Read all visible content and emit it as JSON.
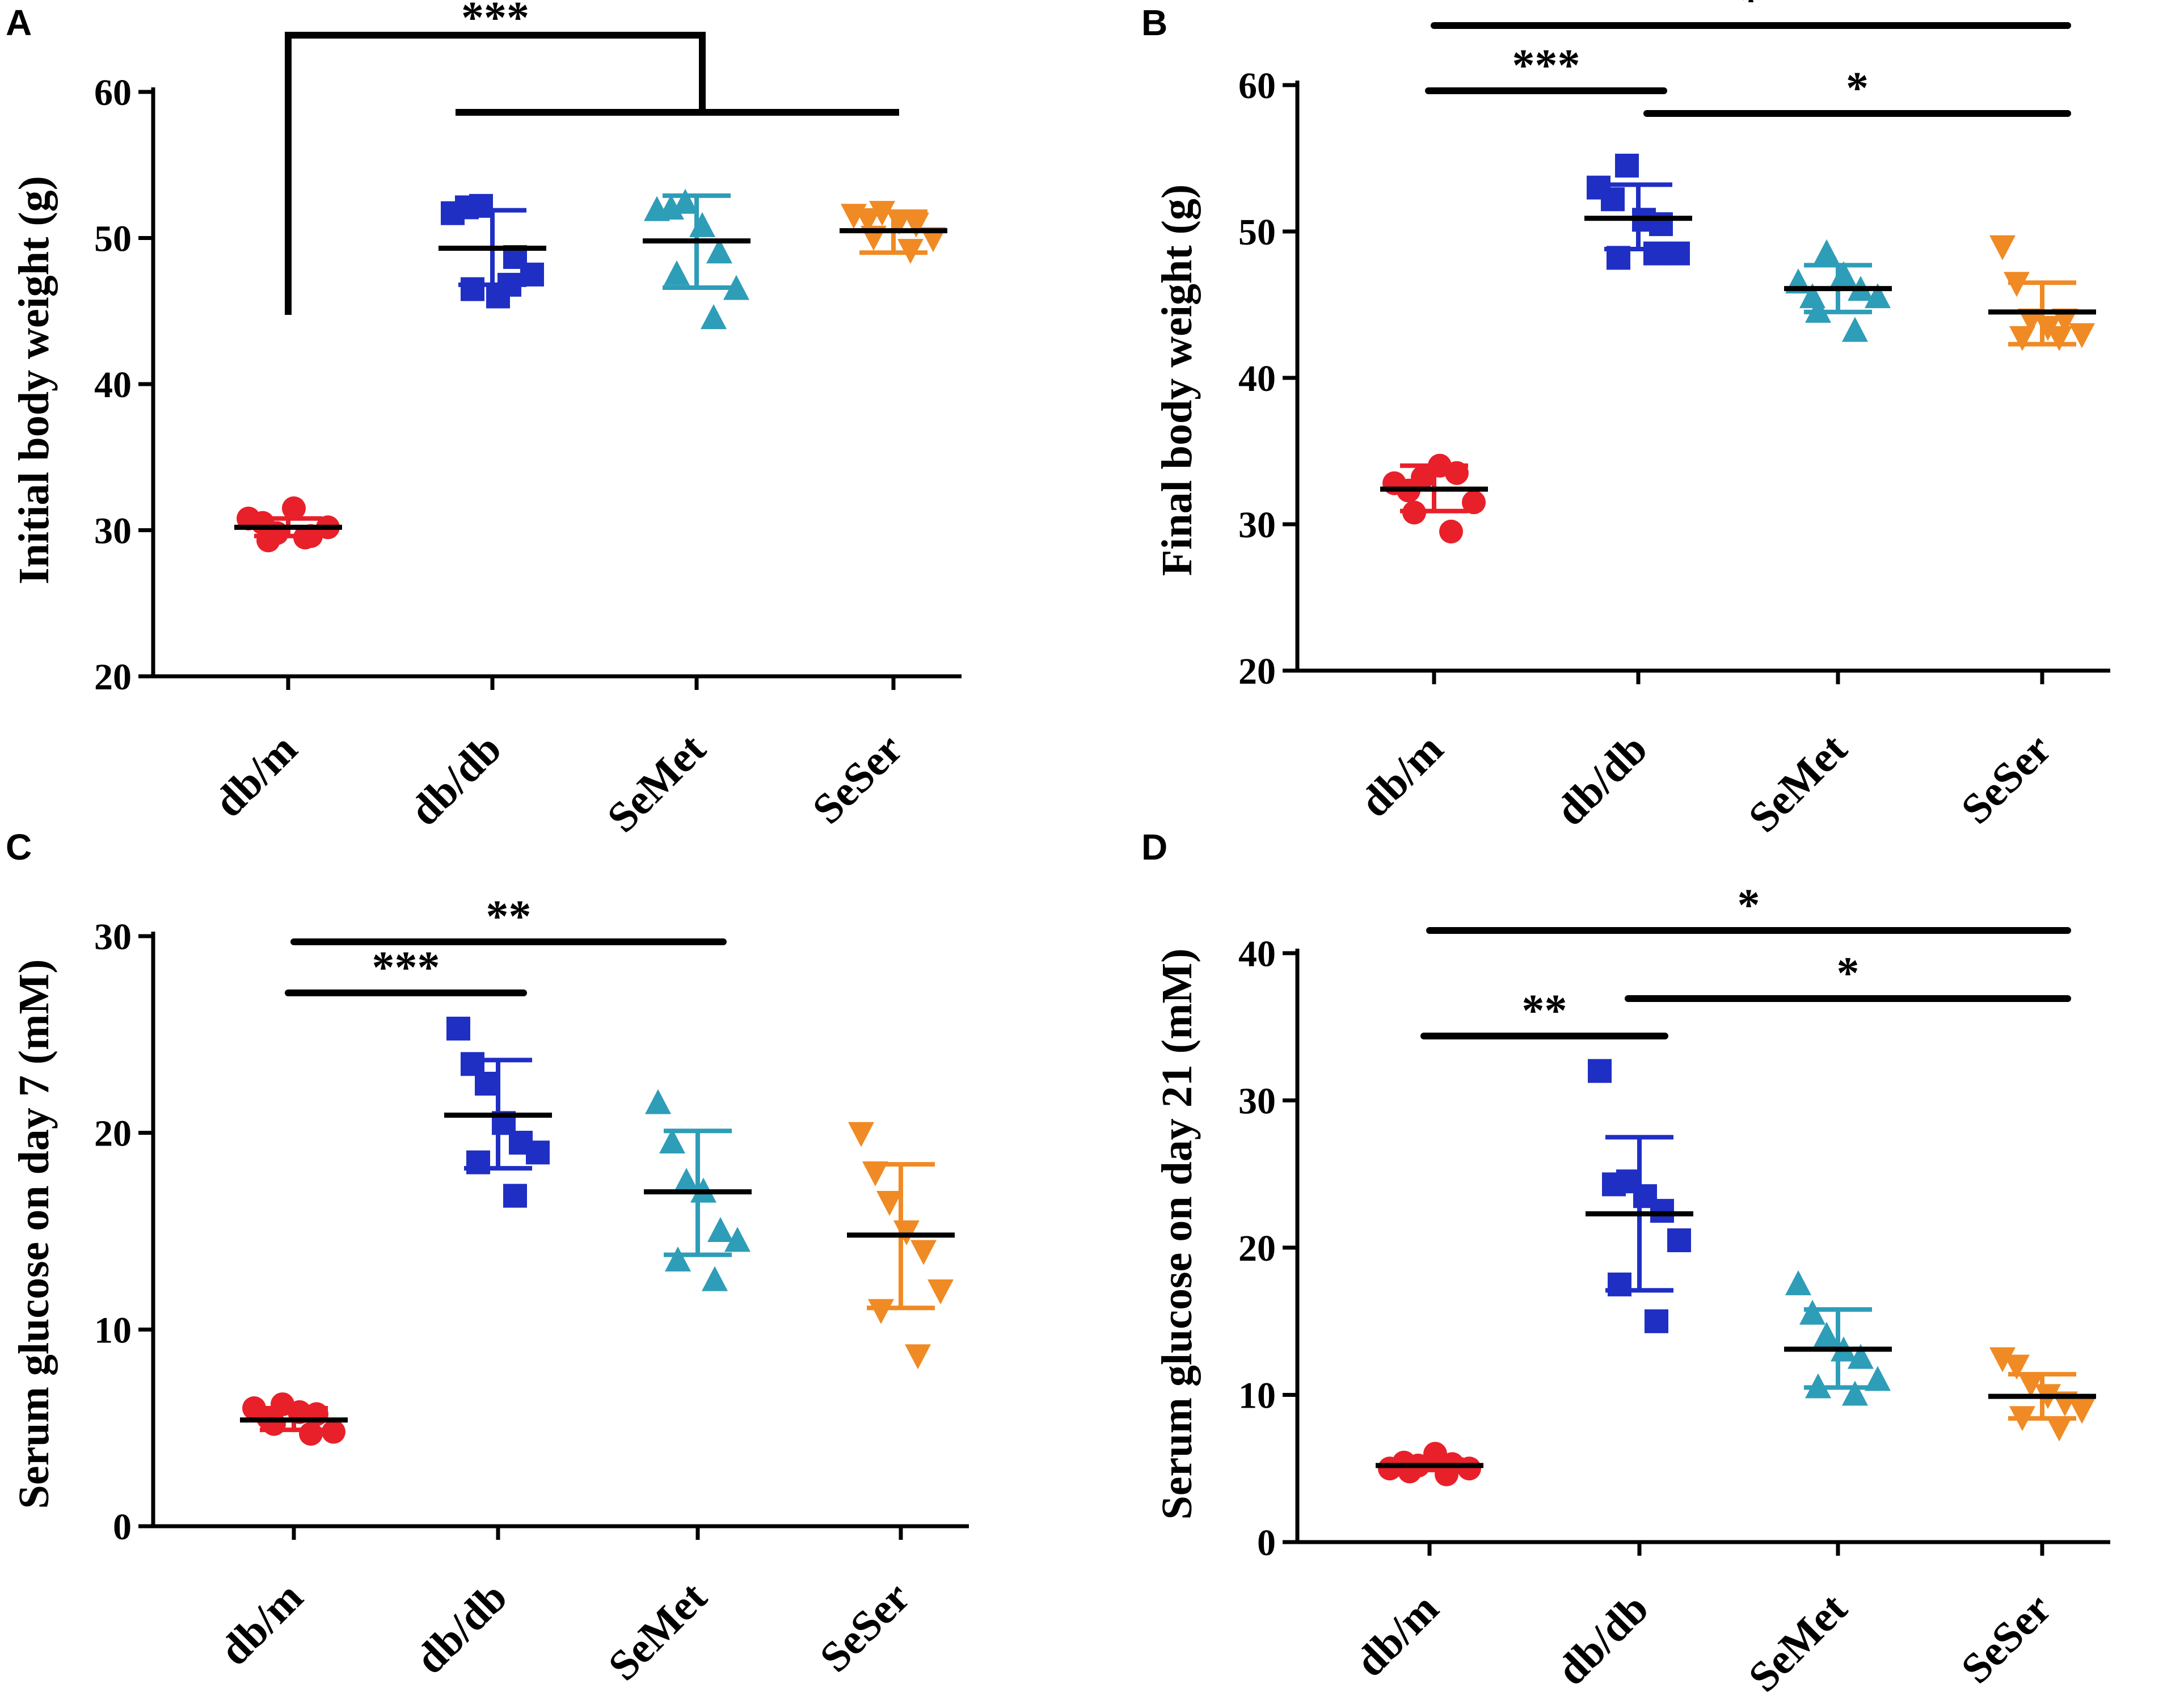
{
  "chart_data": [
    {
      "type": "scatter",
      "panel": "A",
      "ylabel": "Initial body weight (g)",
      "ylim": [
        20,
        60
      ],
      "yticks": [
        20,
        30,
        40,
        50,
        60
      ],
      "categories": [
        "db/m",
        "db/db",
        "SeMet",
        "SeSer"
      ],
      "series": [
        {
          "name": "db/m",
          "color": "#e8202a",
          "marker": "circle",
          "values": [
            30.8,
            30.5,
            29.8,
            31.5,
            29.6,
            30.2,
            29.3,
            29.5
          ],
          "mean": 30.2,
          "sd_low": 29.6,
          "sd_high": 30.8
        },
        {
          "name": "db/db",
          "color": "#1f2fc4",
          "marker": "square",
          "values": [
            51.7,
            52.1,
            52.2,
            46.0,
            48.7,
            47.5,
            46.5,
            46.8
          ],
          "mean": 49.3,
          "sd_low": 46.8,
          "sd_high": 51.9
        },
        {
          "name": "SeMet",
          "color": "#2e9db8",
          "marker": "triangle-up",
          "values": [
            51.9,
            52.0,
            52.4,
            50.8,
            49.0,
            46.5,
            47.5,
            44.5
          ],
          "mean": 49.8,
          "sd_low": 46.6,
          "sd_high": 52.9
        },
        {
          "name": "SeSer",
          "color": "#f08a24",
          "marker": "triangle-down",
          "values": [
            51.6,
            51.3,
            51.8,
            51.2,
            51.0,
            50.0,
            50.1,
            49.2
          ],
          "mean": 50.5,
          "sd_low": 49.0,
          "sd_high": 51.8
        }
      ],
      "comparisons": [
        {
          "type": "group-bracket",
          "from": "db/m",
          "to": [
            "db/db",
            "SeMet",
            "SeSer"
          ],
          "label": "***"
        }
      ]
    },
    {
      "type": "scatter",
      "panel": "B",
      "ylabel": "Final body weight (g)",
      "ylim": [
        20,
        60
      ],
      "yticks": [
        20,
        30,
        40,
        50,
        60
      ],
      "categories": [
        "db/m",
        "db/db",
        "SeMet",
        "SeSer"
      ],
      "series": [
        {
          "name": "db/m",
          "color": "#e8202a",
          "marker": "circle",
          "values": [
            32.8,
            32.3,
            33.2,
            34.0,
            33.5,
            31.5,
            30.8,
            29.5
          ],
          "mean": 32.4,
          "sd_low": 30.9,
          "sd_high": 34.0
        },
        {
          "name": "db/db",
          "color": "#1f2fc4",
          "marker": "square",
          "values": [
            53.0,
            52.2,
            54.5,
            50.8,
            50.5,
            48.5,
            48.2,
            48.5
          ],
          "mean": 50.9,
          "sd_low": 48.8,
          "sd_high": 53.2
        },
        {
          "name": "SeMet",
          "color": "#2e9db8",
          "marker": "triangle-up",
          "values": [
            46.5,
            45.5,
            48.5,
            47.0,
            46.0,
            45.5,
            44.5,
            43.2
          ],
          "mean": 46.1,
          "sd_low": 44.5,
          "sd_high": 47.7
        },
        {
          "name": "SeSer",
          "color": "#f08a24",
          "marker": "triangle-down",
          "values": [
            49.0,
            46.5,
            44.0,
            43.5,
            44.0,
            43.0,
            42.8,
            42.8
          ],
          "mean": 44.5,
          "sd_low": 42.3,
          "sd_high": 46.5
        }
      ],
      "comparisons": [
        {
          "from": "db/m",
          "to": "db/db",
          "label": "***"
        },
        {
          "from": "db/db",
          "to": "SeSer",
          "label": "*"
        },
        {
          "from": "db/m",
          "to": "SeSer",
          "label": "*"
        }
      ]
    },
    {
      "type": "scatter",
      "panel": "C",
      "ylabel": "Serum glucose on day 7 (mM)",
      "ylim": [
        0,
        30
      ],
      "yticks": [
        0,
        10,
        20,
        30
      ],
      "categories": [
        "db/m",
        "db/db",
        "SeMet",
        "SeSer"
      ],
      "series": [
        {
          "name": "db/m",
          "color": "#e8202a",
          "marker": "circle",
          "values": [
            6.0,
            5.5,
            6.2,
            5.8,
            5.7,
            4.8,
            5.2,
            4.7
          ],
          "mean": 5.4,
          "sd_low": 4.9,
          "sd_high": 6.0
        },
        {
          "name": "db/db",
          "color": "#1f2fc4",
          "marker": "square",
          "values": [
            25.3,
            23.5,
            22.5,
            20.5,
            19.5,
            19.0,
            18.5,
            16.8
          ],
          "mean": 20.9,
          "sd_low": 18.2,
          "sd_high": 23.7
        },
        {
          "name": "SeMet",
          "color": "#2e9db8",
          "marker": "triangle-up",
          "values": [
            21.5,
            19.5,
            17.5,
            17.0,
            15.0,
            14.5,
            13.5,
            12.5
          ],
          "mean": 17.0,
          "sd_low": 13.8,
          "sd_high": 20.1
        },
        {
          "name": "SeSer",
          "color": "#f08a24",
          "marker": "triangle-down",
          "values": [
            20.0,
            18.0,
            16.5,
            15.0,
            14.0,
            12.0,
            11.0,
            8.7
          ],
          "mean": 14.8,
          "sd_low": 11.1,
          "sd_high": 18.4
        }
      ],
      "comparisons": [
        {
          "from": "db/m",
          "to": "db/db",
          "label": "***"
        },
        {
          "from": "db/m",
          "to": "SeMet",
          "label": "**"
        }
      ]
    },
    {
      "type": "scatter",
      "panel": "D",
      "ylabel": "Serum glucose on day 21 (mM)",
      "ylim": [
        0,
        40
      ],
      "yticks": [
        0,
        10,
        20,
        30,
        40
      ],
      "categories": [
        "db/m",
        "db/db",
        "SeMet",
        "SeSer"
      ],
      "series": [
        {
          "name": "db/m",
          "color": "#e8202a",
          "marker": "circle",
          "values": [
            5.0,
            5.4,
            5.2,
            6.0,
            5.3,
            5.0,
            4.8,
            4.6
          ],
          "mean": 5.2,
          "sd_low": 4.9,
          "sd_high": 5.6
        },
        {
          "name": "db/db",
          "color": "#1f2fc4",
          "marker": "square",
          "values": [
            32.0,
            24.3,
            24.5,
            23.5,
            22.5,
            20.5,
            17.5,
            15.0
          ],
          "mean": 22.3,
          "sd_low": 17.1,
          "sd_high": 27.5
        },
        {
          "name": "SeMet",
          "color": "#2e9db8",
          "marker": "triangle-up",
          "values": [
            17.5,
            15.5,
            14.0,
            13.0,
            12.5,
            11.0,
            10.5,
            10.0
          ],
          "mean": 13.1,
          "sd_low": 10.5,
          "sd_high": 15.8
        },
        {
          "name": "SeSer",
          "color": "#f08a24",
          "marker": "triangle-down",
          "values": [
            12.5,
            12.0,
            10.8,
            10.0,
            9.5,
            9.0,
            8.5,
            7.8
          ],
          "mean": 9.9,
          "sd_low": 8.4,
          "sd_high": 11.4
        }
      ],
      "comparisons": [
        {
          "from": "db/m",
          "to": "db/db",
          "label": "**"
        },
        {
          "from": "db/db",
          "to": "SeSer",
          "label": "*"
        },
        {
          "from": "db/m",
          "to": "SeSer",
          "label": "*"
        }
      ]
    }
  ]
}
